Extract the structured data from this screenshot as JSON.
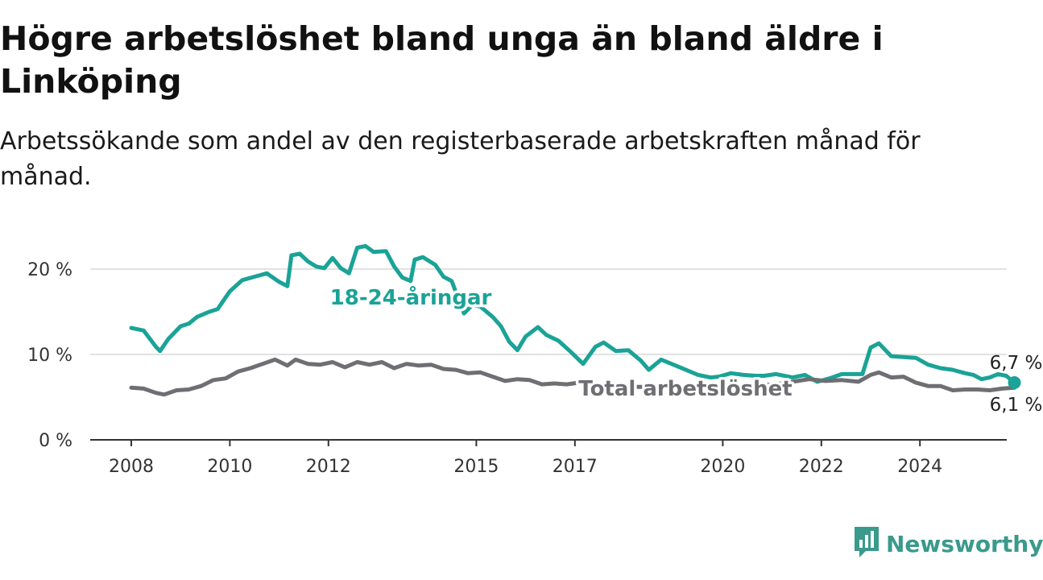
{
  "title": "Högre arbetslöshet bland unga än bland äldre i Linköping",
  "subtitle": "Arbetssökande som andel av den registerbaserade arbetskraften månad för månad.",
  "brand": {
    "name": "Newsworthy",
    "color": "#3a9a8c",
    "icon": "bar-chart-speech-bubble-icon"
  },
  "chart_data": {
    "type": "line",
    "x_ticks": [
      "2008",
      "2010",
      "2012",
      "2015",
      "2017",
      "2020",
      "2022",
      "2024"
    ],
    "y_ticks": [
      "0 %",
      "10 %",
      "20 %"
    ],
    "xlim": [
      "2008-01",
      "2025-12"
    ],
    "ylim": [
      0,
      24
    ],
    "grid": true,
    "series": [
      {
        "name": "18-24-åringar",
        "color": "#1aa396",
        "end_label": "6,7 %",
        "points": [
          [
            "2008-01",
            13.1
          ],
          [
            "2008-04",
            12.8
          ],
          [
            "2008-07",
            10.9
          ],
          [
            "2008-08",
            10.4
          ],
          [
            "2008-10",
            11.8
          ],
          [
            "2009-01",
            13.3
          ],
          [
            "2009-03",
            13.6
          ],
          [
            "2009-05",
            14.4
          ],
          [
            "2009-08",
            15.0
          ],
          [
            "2009-10",
            15.3
          ],
          [
            "2010-01",
            17.4
          ],
          [
            "2010-04",
            18.7
          ],
          [
            "2010-07",
            19.1
          ],
          [
            "2010-10",
            19.5
          ],
          [
            "2011-01",
            18.5
          ],
          [
            "2011-03",
            18.0
          ],
          [
            "2011-04",
            21.6
          ],
          [
            "2011-06",
            21.8
          ],
          [
            "2011-08",
            20.9
          ],
          [
            "2011-10",
            20.3
          ],
          [
            "2011-12",
            20.1
          ],
          [
            "2012-02",
            21.3
          ],
          [
            "2012-04",
            20.1
          ],
          [
            "2012-06",
            19.5
          ],
          [
            "2012-08",
            22.5
          ],
          [
            "2012-10",
            22.7
          ],
          [
            "2012-12",
            22.0
          ],
          [
            "2013-03",
            22.1
          ],
          [
            "2013-05",
            20.3
          ],
          [
            "2013-07",
            19.0
          ],
          [
            "2013-09",
            18.6
          ],
          [
            "2013-10",
            21.1
          ],
          [
            "2013-12",
            21.4
          ],
          [
            "2014-03",
            20.5
          ],
          [
            "2014-05",
            19.1
          ],
          [
            "2014-07",
            18.6
          ],
          [
            "2014-10",
            14.8
          ],
          [
            "2014-12",
            15.8
          ],
          [
            "2015-02",
            15.6
          ],
          [
            "2015-05",
            14.4
          ],
          [
            "2015-07",
            13.3
          ],
          [
            "2015-09",
            11.5
          ],
          [
            "2015-11",
            10.5
          ],
          [
            "2016-01",
            12.1
          ],
          [
            "2016-04",
            13.2
          ],
          [
            "2016-06",
            12.3
          ],
          [
            "2016-09",
            11.6
          ],
          [
            "2016-12",
            10.3
          ],
          [
            "2017-03",
            8.9
          ],
          [
            "2017-06",
            10.9
          ],
          [
            "2017-08",
            11.4
          ],
          [
            "2017-11",
            10.4
          ],
          [
            "2018-02",
            10.5
          ],
          [
            "2018-05",
            9.3
          ],
          [
            "2018-07",
            8.2
          ],
          [
            "2018-10",
            9.4
          ],
          [
            "2019-01",
            8.8
          ],
          [
            "2019-04",
            8.2
          ],
          [
            "2019-07",
            7.6
          ],
          [
            "2019-10",
            7.3
          ],
          [
            "2019-12",
            7.4
          ],
          [
            "2020-03",
            7.8
          ],
          [
            "2020-06",
            7.6
          ],
          [
            "2020-09",
            7.5
          ],
          [
            "2020-11",
            7.5
          ],
          [
            "2021-02",
            7.7
          ],
          [
            "2021-06",
            7.3
          ],
          [
            "2021-09",
            7.6
          ],
          [
            "2021-12",
            6.8
          ],
          [
            "2022-03",
            7.2
          ],
          [
            "2022-06",
            7.7
          ],
          [
            "2022-09",
            7.7
          ],
          [
            "2022-11",
            7.7
          ],
          [
            "2023-01",
            10.8
          ],
          [
            "2023-03",
            11.3
          ],
          [
            "2023-06",
            9.8
          ],
          [
            "2023-09",
            9.7
          ],
          [
            "2023-12",
            9.6
          ],
          [
            "2024-03",
            8.8
          ],
          [
            "2024-06",
            8.4
          ],
          [
            "2024-09",
            8.2
          ],
          [
            "2024-12",
            7.8
          ],
          [
            "2025-02",
            7.6
          ],
          [
            "2025-04",
            7.1
          ],
          [
            "2025-06",
            7.3
          ],
          [
            "2025-08",
            7.7
          ],
          [
            "2025-10",
            7.5
          ],
          [
            "2025-12",
            6.7
          ]
        ]
      },
      {
        "name": "Total arbetslöshet",
        "color": "#6e6e73",
        "end_label": "6,1 %",
        "points": [
          [
            "2008-01",
            6.1
          ],
          [
            "2008-04",
            6.0
          ],
          [
            "2008-07",
            5.5
          ],
          [
            "2008-09",
            5.3
          ],
          [
            "2008-12",
            5.8
          ],
          [
            "2009-03",
            5.9
          ],
          [
            "2009-06",
            6.3
          ],
          [
            "2009-09",
            7.0
          ],
          [
            "2009-12",
            7.2
          ],
          [
            "2010-03",
            8.0
          ],
          [
            "2010-06",
            8.4
          ],
          [
            "2010-09",
            8.9
          ],
          [
            "2010-12",
            9.4
          ],
          [
            "2011-03",
            8.7
          ],
          [
            "2011-05",
            9.4
          ],
          [
            "2011-08",
            8.9
          ],
          [
            "2011-11",
            8.8
          ],
          [
            "2012-02",
            9.1
          ],
          [
            "2012-05",
            8.5
          ],
          [
            "2012-08",
            9.1
          ],
          [
            "2012-11",
            8.8
          ],
          [
            "2013-02",
            9.1
          ],
          [
            "2013-05",
            8.4
          ],
          [
            "2013-08",
            8.9
          ],
          [
            "2013-11",
            8.7
          ],
          [
            "2014-02",
            8.8
          ],
          [
            "2014-05",
            8.3
          ],
          [
            "2014-08",
            8.2
          ],
          [
            "2014-11",
            7.8
          ],
          [
            "2015-02",
            7.9
          ],
          [
            "2015-05",
            7.4
          ],
          [
            "2015-08",
            6.9
          ],
          [
            "2015-11",
            7.1
          ],
          [
            "2016-02",
            7.0
          ],
          [
            "2016-05",
            6.5
          ],
          [
            "2016-08",
            6.6
          ],
          [
            "2016-11",
            6.5
          ],
          [
            "2017-02",
            6.7
          ],
          [
            "2017-05",
            6.4
          ],
          [
            "2017-08",
            5.9
          ],
          [
            "2017-11",
            6.1
          ],
          [
            "2018-02",
            6.2
          ],
          [
            "2018-06",
            6.2
          ],
          [
            "2018-10",
            6.2
          ],
          [
            "2019-02",
            6.3
          ],
          [
            "2019-06",
            6.1
          ],
          [
            "2019-10",
            6.0
          ],
          [
            "2020-02",
            6.2
          ],
          [
            "2020-06",
            6.3
          ],
          [
            "2020-10",
            6.4
          ],
          [
            "2021-02",
            6.5
          ],
          [
            "2021-06",
            6.8
          ],
          [
            "2021-10",
            7.1
          ],
          [
            "2022-02",
            6.9
          ],
          [
            "2022-06",
            7.0
          ],
          [
            "2022-10",
            6.8
          ],
          [
            "2023-01",
            7.6
          ],
          [
            "2023-03",
            7.9
          ],
          [
            "2023-06",
            7.3
          ],
          [
            "2023-09",
            7.4
          ],
          [
            "2023-12",
            6.7
          ],
          [
            "2024-03",
            6.3
          ],
          [
            "2024-06",
            6.3
          ],
          [
            "2024-09",
            5.8
          ],
          [
            "2024-12",
            5.9
          ],
          [
            "2025-03",
            5.9
          ],
          [
            "2025-06",
            5.8
          ],
          [
            "2025-09",
            6.0
          ],
          [
            "2025-12",
            6.1
          ]
        ]
      }
    ]
  }
}
